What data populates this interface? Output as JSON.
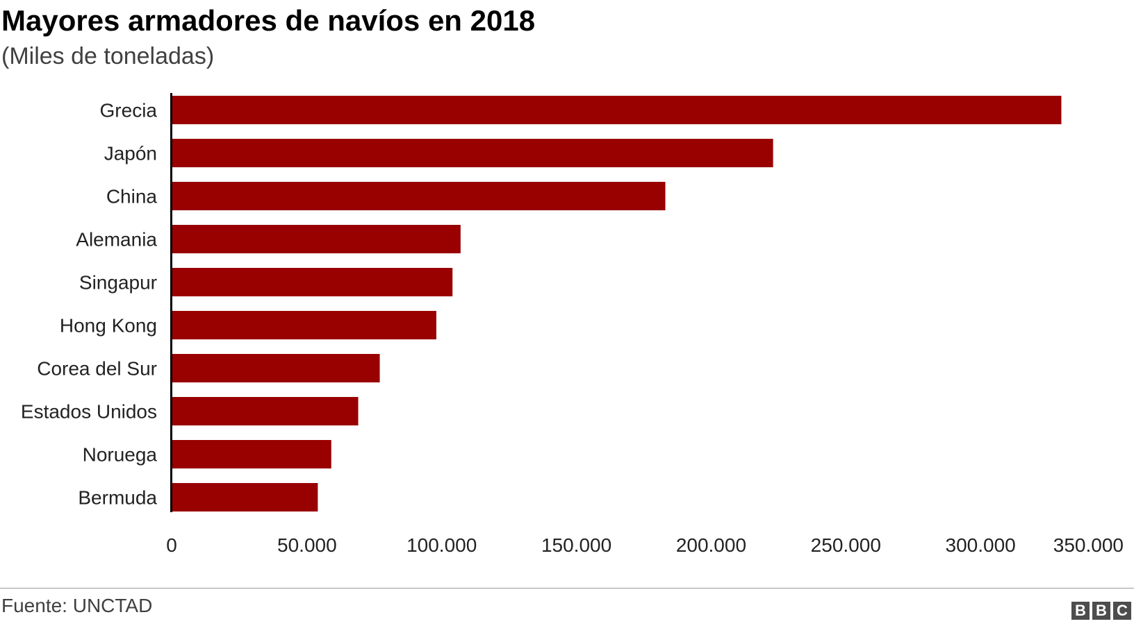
{
  "header": {
    "title": "Mayores armadores de navíos en 2018",
    "subtitle": "(Miles de toneladas)"
  },
  "footer": {
    "source": "Fuente: UNCTAD",
    "logo_letters": [
      "B",
      "B",
      "C"
    ]
  },
  "colors": {
    "bar": "#990000",
    "axis": "#000000",
    "label": "#222222"
  },
  "chart_data": {
    "type": "bar",
    "orientation": "horizontal",
    "title": "Mayores armadores de navíos en 2018",
    "subtitle": "(Miles de toneladas)",
    "categories": [
      "Grecia",
      "Japón",
      "China",
      "Alemania",
      "Singapur",
      "Hong Kong",
      "Corea del Sur",
      "Estados Unidos",
      "Noruega",
      "Bermuda"
    ],
    "values": [
      330000,
      223000,
      183000,
      107000,
      104000,
      98000,
      77000,
      69000,
      59000,
      54000
    ],
    "xlim": [
      0,
      350000
    ],
    "xticks": [
      0,
      50000,
      100000,
      150000,
      200000,
      250000,
      300000,
      350000
    ],
    "xtick_labels": [
      "0",
      "50.000",
      "100.000",
      "150.000",
      "200.000",
      "250.000",
      "300.000",
      "350.000"
    ],
    "grid": false,
    "legend": "none"
  }
}
